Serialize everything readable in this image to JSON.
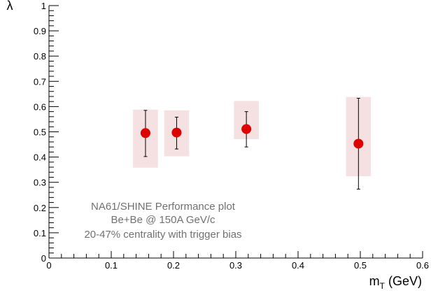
{
  "chart_data": {
    "type": "scatter",
    "xlabel_main": "m",
    "xlabel_sub": "T",
    "xlabel_unit": " (GeV)",
    "ylabel": "λ",
    "xlim": [
      0,
      0.6
    ],
    "ylim": [
      0,
      1
    ],
    "x_ticks": [
      "0",
      "0.1",
      "0.2",
      "0.3",
      "0.4",
      "0.5",
      "0.6"
    ],
    "y_ticks": [
      "0",
      "0.1",
      "0.2",
      "0.3",
      "0.4",
      "0.5",
      "0.6",
      "0.7",
      "0.8",
      "0.9",
      "1"
    ],
    "grid": false,
    "points": [
      {
        "x": 0.155,
        "y": 0.495,
        "stat_low": 0.402,
        "stat_high": 0.585,
        "sys_x_low": 0.135,
        "sys_x_high": 0.175,
        "sys_low": 0.358,
        "sys_high": 0.588
      },
      {
        "x": 0.205,
        "y": 0.497,
        "stat_low": 0.432,
        "stat_high": 0.558,
        "sys_x_low": 0.185,
        "sys_x_high": 0.225,
        "sys_low": 0.403,
        "sys_high": 0.585
      },
      {
        "x": 0.317,
        "y": 0.511,
        "stat_low": 0.44,
        "stat_high": 0.58,
        "sys_x_low": 0.297,
        "sys_x_high": 0.337,
        "sys_low": 0.471,
        "sys_high": 0.622
      },
      {
        "x": 0.497,
        "y": 0.453,
        "stat_low": 0.273,
        "stat_high": 0.633,
        "sys_x_low": 0.477,
        "sys_x_high": 0.517,
        "sys_low": 0.324,
        "sys_high": 0.638
      }
    ],
    "annotations": [
      "NA61/SHINE Performance plot",
      "Be+Be @ 150A GeV/c",
      "20-47% centrality with trigger bias"
    ],
    "colors": {
      "marker": "#dd0000",
      "sys_box": "#f5e1e1",
      "annotation": "#707070"
    }
  }
}
